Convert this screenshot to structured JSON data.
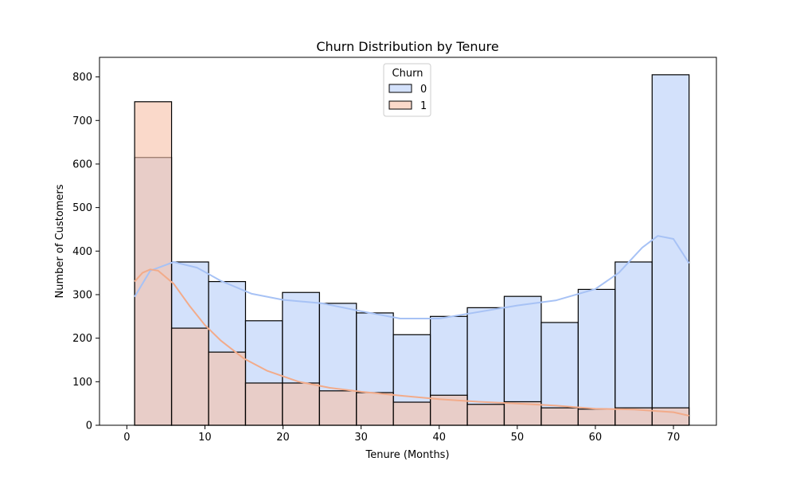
{
  "chart_data": {
    "type": "histogram",
    "title": "Churn Distribution by Tenure",
    "xlabel": "Tenure (Months)",
    "ylabel": "Number of Customers",
    "xlim": [
      -3.5,
      75.5
    ],
    "ylim": [
      0,
      845
    ],
    "xticks": [
      0,
      10,
      20,
      30,
      40,
      50,
      60,
      70
    ],
    "yticks": [
      0,
      100,
      200,
      300,
      400,
      500,
      600,
      700,
      800
    ],
    "bin_edges": [
      1,
      5.73,
      10.47,
      15.2,
      19.93,
      24.67,
      29.4,
      34.13,
      38.87,
      43.6,
      48.33,
      53.07,
      57.8,
      62.53,
      67.27,
      72
    ],
    "legend": {
      "title": "Churn",
      "position": "top-center"
    },
    "grid": false,
    "series": [
      {
        "name": "0",
        "color": "#b5cdf8",
        "line_color": "#a7c2f5",
        "values": [
          615,
          375,
          330,
          240,
          305,
          280,
          258,
          208,
          250,
          270,
          296,
          236,
          312,
          375,
          805
        ],
        "kde": {
          "x": [
            1,
            3,
            6,
            9,
            12,
            16,
            20,
            25,
            30,
            35,
            40,
            45,
            50,
            55,
            60,
            63,
            66,
            68,
            70,
            72
          ],
          "y": [
            295,
            355,
            375,
            362,
            332,
            302,
            288,
            280,
            262,
            245,
            245,
            260,
            275,
            287,
            313,
            350,
            408,
            435,
            428,
            372
          ]
        }
      },
      {
        "name": "1",
        "color": "#f6c0a6",
        "line_color": "#f2ab8a",
        "values": [
          743,
          223,
          168,
          97,
          97,
          79,
          75,
          53,
          69,
          48,
          54,
          40,
          37,
          40,
          40
        ],
        "kde": {
          "x": [
            1,
            2,
            3,
            4,
            6,
            8,
            10,
            12,
            15,
            18,
            22,
            26,
            30,
            35,
            40,
            45,
            50,
            55,
            60,
            65,
            70,
            72
          ],
          "y": [
            330,
            350,
            358,
            355,
            325,
            275,
            230,
            195,
            153,
            125,
            100,
            86,
            77,
            68,
            60,
            54,
            50,
            45,
            38,
            36,
            30,
            22
          ]
        }
      }
    ]
  }
}
